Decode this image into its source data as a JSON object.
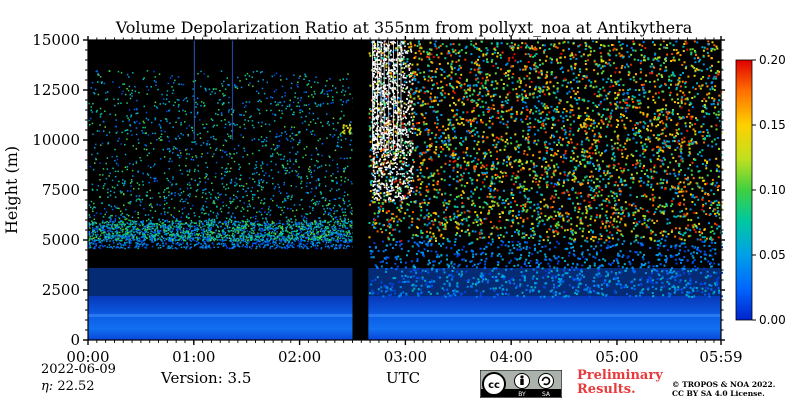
{
  "chart_data": {
    "type": "heatmap",
    "title": "Volume Depolarization Ratio at 355nm from pollyxt_noa at Antikythera",
    "ylabel": "Height (m)",
    "xlabel": "UTC",
    "x_ticks": [
      "00:00",
      "01:00",
      "02:00",
      "03:00",
      "04:00",
      "05:00",
      "05:59"
    ],
    "x_range_hours": [
      0,
      5.9833
    ],
    "y_ticks": [
      0,
      2500,
      5000,
      7500,
      10000,
      12500,
      15000
    ],
    "ylim": [
      0,
      15000
    ],
    "colorbar": {
      "ticks": [
        "0.00",
        "0.05",
        "0.10",
        "0.15",
        "0.20"
      ],
      "range": [
        0,
        0.2
      ],
      "colormap": [
        "#0022cc",
        "#0066ff",
        "#00a0e8",
        "#00c8a0",
        "#40d040",
        "#c0e020",
        "#ffd000",
        "#ff7000",
        "#e00000"
      ]
    },
    "data_gap_hours": [
      2.5,
      2.65
    ],
    "aerosol_layer_top_m": 2200,
    "noise_onset_m": 5000,
    "cirrus_patch": {
      "time_hours": 2.45,
      "height_m": 10500,
      "value": 0.12
    }
  },
  "footer": {
    "date": "2022-06-09",
    "eta_label": "η:",
    "eta_value": "22.52",
    "version": "Version: 3.5",
    "preliminary_1": "Preliminary",
    "preliminary_2": "Results.",
    "copyright_1": "© TROPOS & NOA 2022.",
    "copyright_2": "CC BY SA 4.0 License.",
    "cc_badge": [
      "BY",
      "SA"
    ]
  }
}
